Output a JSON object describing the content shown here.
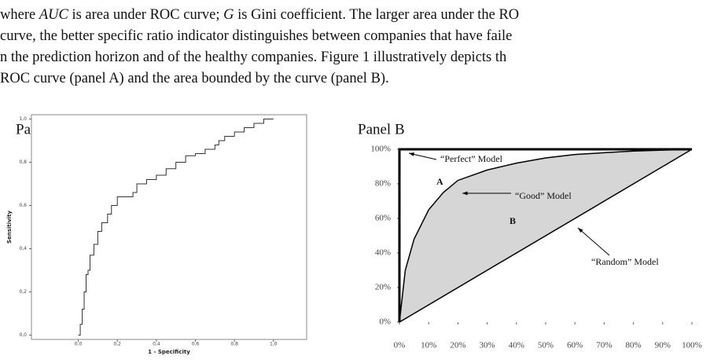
{
  "paragraph": {
    "lines": [
      [
        "where ",
        "AUC",
        " is area under ROC curve; ",
        "G",
        " is Gini coefficient. The larger area under the RO"
      ],
      [
        "curve, the better specific ratio indicator distinguishes between companies that have faile"
      ],
      [
        "n the prediction horizon and of the healthy companies. Figure 1 illustratively depicts th"
      ],
      [
        "ROC curve (panel A) and the area bounded by the curve (panel B)."
      ]
    ]
  },
  "chart_data": [
    {
      "type": "line",
      "title": "Panel A",
      "xlabel": "1 - Specificity",
      "ylabel": "Sensitivity",
      "step": true,
      "xlim": [
        -0.24,
        1.17
      ],
      "ylim": [
        -0.02,
        1.02
      ],
      "xticks": [
        {
          "value": 0,
          "label": "0,0"
        },
        {
          "value": 0.2,
          "label": "0,2"
        },
        {
          "value": 0.4,
          "label": "0,4"
        },
        {
          "value": 0.6,
          "label": "0,6"
        },
        {
          "value": 0.8,
          "label": "0,8"
        },
        {
          "value": 1,
          "label": "1,0"
        }
      ],
      "yticks": [
        {
          "value": 0,
          "label": "0,0"
        },
        {
          "value": 0.2,
          "label": "0,2"
        },
        {
          "value": 0.4,
          "label": "0,4"
        },
        {
          "value": 0.6,
          "label": "0,6"
        },
        {
          "value": 0.8,
          "label": "0,8"
        },
        {
          "value": 1,
          "label": "1,0"
        }
      ],
      "x": [
        0,
        0.01,
        0.02,
        0.03,
        0.04,
        0.05,
        0.06,
        0.08,
        0.1,
        0.12,
        0.15,
        0.17,
        0.2,
        0.28,
        0.3,
        0.35,
        0.4,
        0.45,
        0.5,
        0.55,
        0.6,
        0.65,
        0.7,
        0.72,
        0.75,
        0.8,
        0.85,
        0.9,
        0.95,
        1
      ],
      "series": [
        {
          "color": "#333333",
          "values": [
            0,
            0.05,
            0.12,
            0.2,
            0.28,
            0.3,
            0.37,
            0.42,
            0.48,
            0.52,
            0.56,
            0.6,
            0.64,
            0.66,
            0.7,
            0.72,
            0.74,
            0.77,
            0.8,
            0.83,
            0.84,
            0.86,
            0.88,
            0.9,
            0.92,
            0.94,
            0.96,
            0.98,
            1,
            1
          ]
        }
      ]
    },
    {
      "type": "line",
      "title": "Panel B",
      "step": false,
      "xlim": [
        0,
        100
      ],
      "ylim": [
        0,
        100
      ],
      "xticks": [
        {
          "value": 0,
          "label": "0%"
        },
        {
          "value": 10,
          "label": "10%"
        },
        {
          "value": 20,
          "label": "20%"
        },
        {
          "value": 30,
          "label": "30%"
        },
        {
          "value": 40,
          "label": "40%"
        },
        {
          "value": 50,
          "label": "50%"
        },
        {
          "value": 60,
          "label": "60%"
        },
        {
          "value": 70,
          "label": "70%"
        },
        {
          "value": 80,
          "label": "80%"
        },
        {
          "value": 90,
          "label": "90%"
        },
        {
          "value": 100,
          "label": "100%"
        }
      ],
      "yticks": [
        {
          "value": 0,
          "label": "0%"
        },
        {
          "value": 20,
          "label": "20%"
        },
        {
          "value": 40,
          "label": "40%"
        },
        {
          "value": 60,
          "label": "60%"
        },
        {
          "value": 80,
          "label": "80%"
        },
        {
          "value": 100,
          "label": "100%"
        }
      ],
      "series": [
        {
          "color": "#000000",
          "width": 3,
          "x": [
            0,
            0,
            100
          ],
          "values": [
            0,
            100,
            100
          ]
        },
        {
          "color": "#000000",
          "width": 1.5,
          "fill": "#d6d6d6",
          "x": [
            0,
            2,
            5,
            10,
            15,
            20,
            30,
            40,
            50,
            60,
            70,
            80,
            90,
            100
          ],
          "values": [
            0,
            30,
            48,
            65,
            75,
            82,
            88,
            92,
            95,
            97,
            98,
            99,
            99.5,
            100
          ]
        },
        {
          "color": "#000000",
          "width": 1.5,
          "fill": "#ffffff",
          "x": [
            0,
            100
          ],
          "values": [
            0,
            100
          ]
        }
      ],
      "annotations": [
        "“Perfect” Model",
        "A",
        "“Good” Model",
        "B",
        "“Random” Model"
      ]
    }
  ]
}
